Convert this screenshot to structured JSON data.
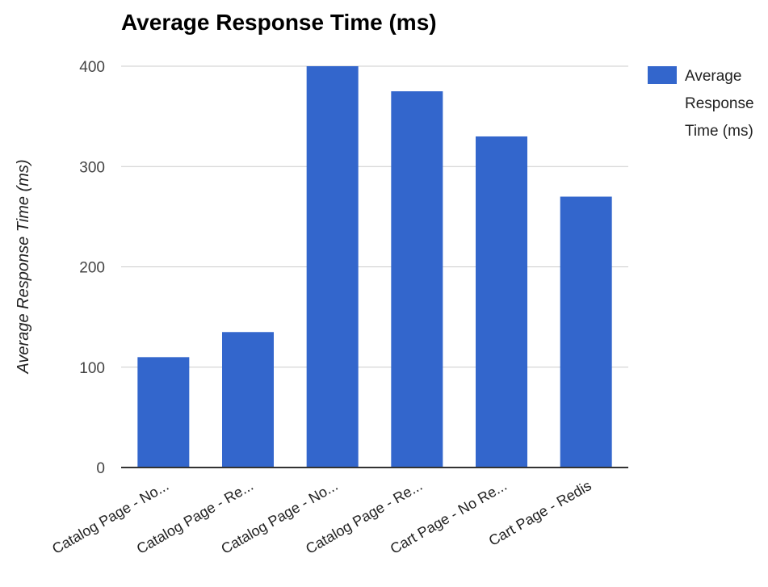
{
  "chart_data": {
    "type": "bar",
    "title": "Average Response Time (ms)",
    "xlabel": "",
    "ylabel": "Average Response Time (ms)",
    "categories": [
      "Catalog Page - No...",
      "Catalog Page - Re...",
      "Catalog Page - No...",
      "Catalog Page - Re...",
      "Cart Page - No Re...",
      "Cart Page - Redis"
    ],
    "series": [
      {
        "name": "Average Response Time (ms)",
        "color": "#3366cc",
        "values": [
          110,
          135,
          400,
          375,
          330,
          270
        ]
      }
    ],
    "ylim": [
      0,
      400
    ],
    "yticks": [
      "0",
      "100",
      "200",
      "300",
      "400"
    ],
    "grid": true,
    "legend": {
      "position": "right",
      "label_lines": [
        "Average",
        "Response",
        "Time (ms)"
      ]
    }
  }
}
